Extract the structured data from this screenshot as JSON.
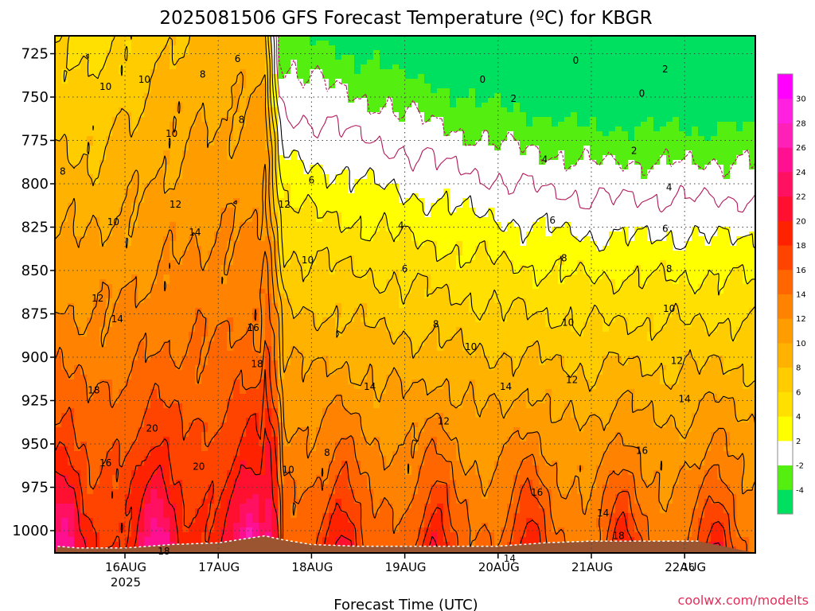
{
  "title": "2025081506 GFS Forecast Temperature (ºC) for KBGR",
  "xlabel": "Forecast Time (UTC)",
  "credit": "coolwx.com/modelts",
  "colors": {
    "terrain": "#9b5530",
    "contour": "#000000",
    "freezing_contour": "#b0185a",
    "grid": "#444444"
  },
  "chart_data": {
    "type": "heatmap",
    "title": "2025081506 GFS Forecast Temperature (ºC) for KBGR",
    "xlabel": "Forecast Time (UTC)",
    "ylabel": "",
    "y_scale": "pressure (hPa), inverted",
    "ylim": [
      1015,
      712
    ],
    "y_ticks": [
      "725",
      "750",
      "775",
      "800",
      "825",
      "850",
      "875",
      "900",
      "925",
      "950",
      "975",
      "1000"
    ],
    "x_ticks": [
      {
        "label": "16AUG",
        "sub": "2025"
      },
      {
        "label": "17AUG",
        "sub": ""
      },
      {
        "label": "18AUG",
        "sub": ""
      },
      {
        "label": "19AUG",
        "sub": ""
      },
      {
        "label": "20AUG",
        "sub": ""
      },
      {
        "label": "21AUG",
        "sub": ""
      },
      {
        "label": "22AUG",
        "sub": ""
      }
    ],
    "x_range_hours": [
      -17.3,
      147.5
    ],
    "grid": true,
    "colorbar": {
      "labels": [
        "30",
        "28",
        "26",
        "24",
        "22",
        "20",
        "18",
        "16",
        "14",
        "12",
        "10",
        "8",
        "6",
        "4",
        "2",
        "-2",
        "-4"
      ],
      "bins": [
        {
          "lo": -6,
          "hi": -4,
          "color": "#00e060"
        },
        {
          "lo": -4,
          "hi": -2,
          "color": "#55ee11"
        },
        {
          "lo": -2,
          "hi": 2,
          "color": "#ffffff"
        },
        {
          "lo": 2,
          "hi": 4,
          "color": "#ffff00"
        },
        {
          "lo": 4,
          "hi": 6,
          "color": "#ffe000"
        },
        {
          "lo": 6,
          "hi": 8,
          "color": "#ffcc00"
        },
        {
          "lo": 8,
          "hi": 10,
          "color": "#ffb300"
        },
        {
          "lo": 10,
          "hi": 12,
          "color": "#ff9c00"
        },
        {
          "lo": 12,
          "hi": 14,
          "color": "#ff8200"
        },
        {
          "lo": 14,
          "hi": 16,
          "color": "#ff6600"
        },
        {
          "lo": 16,
          "hi": 18,
          "color": "#ff4400"
        },
        {
          "lo": 18,
          "hi": 20,
          "color": "#ff2200"
        },
        {
          "lo": 20,
          "hi": 22,
          "color": "#ff1030"
        },
        {
          "lo": 22,
          "hi": 24,
          "color": "#ff1060"
        },
        {
          "lo": 24,
          "hi": 26,
          "color": "#ff1090"
        },
        {
          "lo": 26,
          "hi": 28,
          "color": "#ff20b8"
        },
        {
          "lo": 28,
          "hi": 30,
          "color": "#ff20e0"
        },
        {
          "lo": 30,
          "hi": 32,
          "color": "#ff00ff"
        }
      ]
    },
    "contour_levels": [
      -2,
      0,
      2,
      4,
      6,
      8,
      10,
      12,
      14,
      16,
      18,
      20
    ],
    "surface_pressure_hpa": [
      [
        -17.3,
        1009
      ],
      [
        -12,
        1010
      ],
      [
        0,
        1010
      ],
      [
        12,
        1008
      ],
      [
        24,
        1007
      ],
      [
        30,
        1005
      ],
      [
        36,
        1003
      ],
      [
        40,
        1005
      ],
      [
        48,
        1008
      ],
      [
        60,
        1009
      ],
      [
        72,
        1009
      ],
      [
        84,
        1009
      ],
      [
        96,
        1009
      ],
      [
        108,
        1007
      ],
      [
        120,
        1006
      ],
      [
        132,
        1006
      ],
      [
        147.5,
        1006
      ]
    ],
    "contour_labels": [
      {
        "text": "10",
        "x_hours": -5,
        "y_hpa": 744
      },
      {
        "text": "8",
        "x_hours": -16,
        "y_hpa": 793
      },
      {
        "text": "10",
        "x_hours": 5,
        "y_hpa": 740
      },
      {
        "text": "8",
        "x_hours": 20,
        "y_hpa": 737
      },
      {
        "text": "6",
        "x_hours": 29,
        "y_hpa": 728
      },
      {
        "text": "8",
        "x_hours": 30,
        "y_hpa": 763
      },
      {
        "text": "10",
        "x_hours": 12,
        "y_hpa": 771
      },
      {
        "text": "10",
        "x_hours": -3,
        "y_hpa": 822
      },
      {
        "text": "12",
        "x_hours": 13,
        "y_hpa": 812
      },
      {
        "text": "14",
        "x_hours": 18,
        "y_hpa": 828
      },
      {
        "text": "12",
        "x_hours": 41,
        "y_hpa": 812
      },
      {
        "text": "10",
        "x_hours": 47,
        "y_hpa": 844
      },
      {
        "text": "12",
        "x_hours": -7,
        "y_hpa": 866
      },
      {
        "text": "14",
        "x_hours": -2,
        "y_hpa": 878
      },
      {
        "text": "16",
        "x_hours": 33,
        "y_hpa": 883
      },
      {
        "text": "18",
        "x_hours": 34,
        "y_hpa": 904
      },
      {
        "text": "18",
        "x_hours": -8,
        "y_hpa": 919
      },
      {
        "text": "20",
        "x_hours": 7,
        "y_hpa": 941
      },
      {
        "text": "16",
        "x_hours": -5,
        "y_hpa": 961
      },
      {
        "text": "20",
        "x_hours": 19,
        "y_hpa": 963
      },
      {
        "text": "18",
        "x_hours": 10,
        "y_hpa": 1012
      },
      {
        "text": "10",
        "x_hours": 42,
        "y_hpa": 965
      },
      {
        "text": "8",
        "x_hours": 52,
        "y_hpa": 955
      },
      {
        "text": "6",
        "x_hours": 48,
        "y_hpa": 798
      },
      {
        "text": "4",
        "x_hours": 71,
        "y_hpa": 824
      },
      {
        "text": "6",
        "x_hours": 72,
        "y_hpa": 849
      },
      {
        "text": "8",
        "x_hours": 80,
        "y_hpa": 881
      },
      {
        "text": "10",
        "x_hours": 89,
        "y_hpa": 894
      },
      {
        "text": "14",
        "x_hours": 63,
        "y_hpa": 917
      },
      {
        "text": "12",
        "x_hours": 82,
        "y_hpa": 937
      },
      {
        "text": "14",
        "x_hours": 98,
        "y_hpa": 917
      },
      {
        "text": "0",
        "x_hours": 92,
        "y_hpa": 740
      },
      {
        "text": "2",
        "x_hours": 100,
        "y_hpa": 751
      },
      {
        "text": "4",
        "x_hours": 108,
        "y_hpa": 786
      },
      {
        "text": "6",
        "x_hours": 110,
        "y_hpa": 821
      },
      {
        "text": "8",
        "x_hours": 113,
        "y_hpa": 843
      },
      {
        "text": "10",
        "x_hours": 114,
        "y_hpa": 880
      },
      {
        "text": "12",
        "x_hours": 115,
        "y_hpa": 913
      },
      {
        "text": "16",
        "x_hours": 106,
        "y_hpa": 978
      },
      {
        "text": "14",
        "x_hours": 99,
        "y_hpa": 1016
      },
      {
        "text": "0",
        "x_hours": 116,
        "y_hpa": 729
      },
      {
        "text": "0",
        "x_hours": 133,
        "y_hpa": 748
      },
      {
        "text": "2",
        "x_hours": 139,
        "y_hpa": 734
      },
      {
        "text": "2",
        "x_hours": 131,
        "y_hpa": 781
      },
      {
        "text": "4",
        "x_hours": 140,
        "y_hpa": 802
      },
      {
        "text": "6",
        "x_hours": 139,
        "y_hpa": 826
      },
      {
        "text": "8",
        "x_hours": 140,
        "y_hpa": 849
      },
      {
        "text": "10",
        "x_hours": 140,
        "y_hpa": 872
      },
      {
        "text": "12",
        "x_hours": 142,
        "y_hpa": 902
      },
      {
        "text": "14",
        "x_hours": 144,
        "y_hpa": 924
      },
      {
        "text": "16",
        "x_hours": 133,
        "y_hpa": 954
      },
      {
        "text": "14",
        "x_hours": 123,
        "y_hpa": 990
      },
      {
        "text": "18",
        "x_hours": 127,
        "y_hpa": 1003
      },
      {
        "text": "16",
        "x_hours": 145,
        "y_hpa": 1021
      }
    ]
  }
}
